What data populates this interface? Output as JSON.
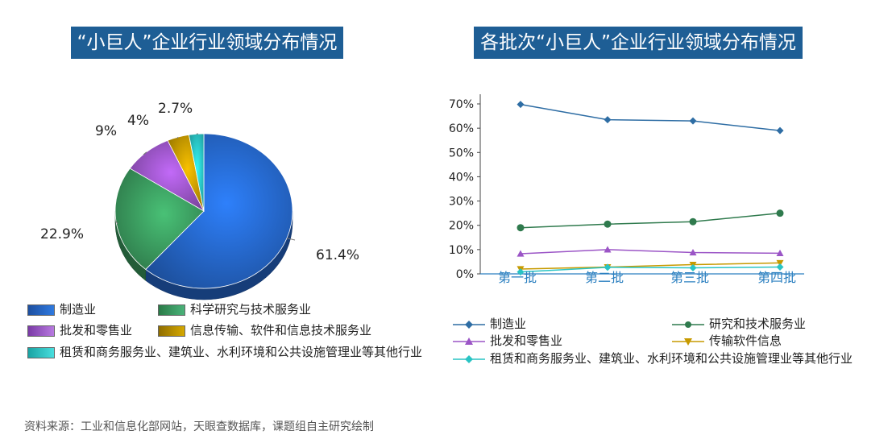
{
  "left_title": "“小巨人”企业行业领域分布情况",
  "right_title": "各批次“小巨人”企业行业领域分布情况",
  "source": "资料来源：工业和信息化部网站，天眼查数据库，课题组自主研究绘制",
  "chart_data": [
    {
      "type": "pie",
      "title": "“小巨人”企业行业领域分布情况",
      "slices": [
        {
          "name": "制造业",
          "value": 61.4,
          "label": "61.4%",
          "color": "#2566c9"
        },
        {
          "name": "科学研究与技术服务业",
          "value": 22.9,
          "label": "22.9%",
          "color": "#3a9a5e"
        },
        {
          "name": "批发和零售业",
          "value": 9,
          "label": "9%",
          "color": "#9b55c6"
        },
        {
          "name": "信息传输、软件和信息技术服务业",
          "value": 4,
          "label": "4%",
          "color": "#c79a00"
        },
        {
          "name": "租赁和商务服务业、建筑业、水利环境和公共设施管理业等其他行业",
          "value": 2.7,
          "label": "2.7%",
          "color": "#29c4c4"
        }
      ],
      "legend_placement": "bottom"
    },
    {
      "type": "line",
      "title": "各批次“小巨人”企业行业领域分布情况",
      "categories": [
        "第一批",
        "第二批",
        "第三批",
        "第四批"
      ],
      "ylim": [
        0,
        70
      ],
      "yticks": [
        "0%",
        "10%",
        "20%",
        "30%",
        "40%",
        "50%",
        "60%",
        "70%"
      ],
      "series": [
        {
          "name": "制造业",
          "values": [
            69.8,
            63.5,
            63.0,
            59.0
          ],
          "color": "#2e6da4",
          "marker": "diamond"
        },
        {
          "name": "研究和技术服务业",
          "values": [
            19.0,
            20.5,
            21.5,
            25.0
          ],
          "color": "#2f7a4d",
          "marker": "circle"
        },
        {
          "name": "批发和零售业",
          "values": [
            8.3,
            10.0,
            8.8,
            8.5
          ],
          "color": "#9b55c6",
          "marker": "triangle-up"
        },
        {
          "name": "传输软件信息",
          "values": [
            2.0,
            2.8,
            3.8,
            4.5
          ],
          "color": "#c79a00",
          "marker": "triangle-down"
        },
        {
          "name": "租赁和商务服务业、建筑业、水利环境和公共设施管理业等其他行业",
          "values": [
            0.8,
            2.7,
            2.5,
            2.8
          ],
          "color": "#29c4c4",
          "marker": "diamond"
        }
      ],
      "legend_placement": "bottom"
    }
  ]
}
